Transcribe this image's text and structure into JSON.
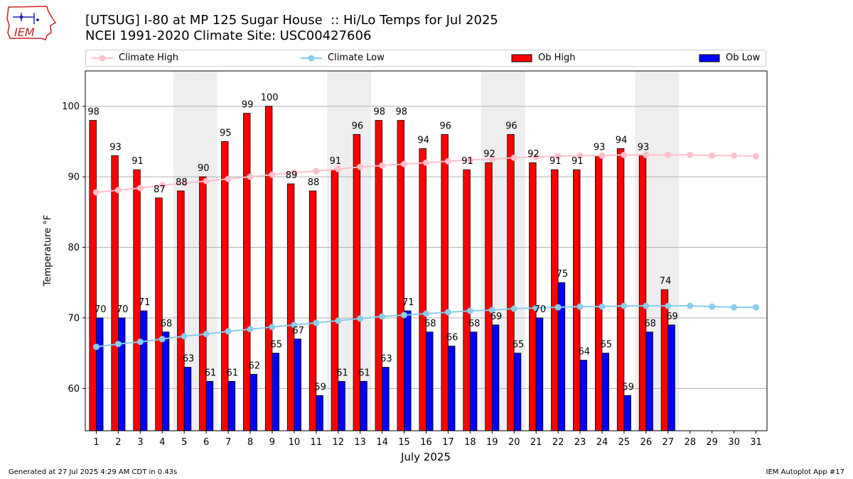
{
  "header": {
    "title_line1": "[UTSUG] I-80 at MP 125 Sugar House  :: Hi/Lo Temps for Jul 2025",
    "title_line2": "NCEI 1991-2020 Climate Site: USC00427606",
    "logo_text": "IEM"
  },
  "legend": {
    "climate_high": "Climate High",
    "climate_low": "Climate Low",
    "ob_high": "Ob High",
    "ob_low": "Ob Low"
  },
  "footer": {
    "generated": "Generated at 27 Jul 2025 4:29 AM CDT in 0.43s",
    "app": "IEM Autoplot App #17"
  },
  "colors": {
    "ob_high": "#ff0000",
    "ob_low": "#0000ff",
    "climate_high": "#ffc0cb",
    "climate_low": "#87ceeb",
    "weekend_shade": "#eeeeee",
    "grid": "#b0b0b0"
  },
  "chart_data": {
    "type": "bar",
    "xlabel": "July 2025",
    "ylabel": "Temperature °F",
    "ylim": [
      54,
      105
    ],
    "yticks": [
      60,
      70,
      80,
      90,
      100
    ],
    "grid": "horizontal",
    "legend_position": "top",
    "categories": [
      "1",
      "2",
      "3",
      "4",
      "5",
      "6",
      "7",
      "8",
      "9",
      "10",
      "11",
      "12",
      "13",
      "14",
      "15",
      "16",
      "17",
      "18",
      "19",
      "20",
      "21",
      "22",
      "23",
      "24",
      "25",
      "26",
      "27",
      "28",
      "29",
      "30",
      "31"
    ],
    "weekend_days": [
      5,
      6,
      12,
      13,
      19,
      20,
      26,
      27
    ],
    "series": [
      {
        "name": "Ob High",
        "kind": "bar",
        "values": [
          98,
          93,
          91,
          87,
          88,
          90,
          95,
          99,
          100,
          89,
          88,
          91,
          96,
          98,
          98,
          94,
          96,
          91,
          92,
          96,
          92,
          91,
          91,
          93,
          94,
          93,
          74,
          null,
          null,
          null,
          null
        ]
      },
      {
        "name": "Ob Low",
        "kind": "bar",
        "values": [
          70,
          70,
          71,
          68,
          63,
          61,
          61,
          62,
          65,
          67,
          59,
          61,
          61,
          63,
          71,
          68,
          66,
          68,
          69,
          65,
          70,
          75,
          64,
          65,
          59,
          68,
          69,
          null,
          null,
          null,
          null
        ]
      },
      {
        "name": "Climate High",
        "kind": "line",
        "values": [
          87.8,
          88.1,
          88.4,
          88.8,
          89.1,
          89.4,
          89.7,
          90.0,
          90.3,
          90.6,
          90.8,
          91.1,
          91.4,
          91.6,
          91.8,
          92.0,
          92.2,
          92.4,
          92.5,
          92.7,
          92.8,
          92.9,
          93.0,
          93.0,
          93.1,
          93.1,
          93.1,
          93.1,
          93.0,
          93.0,
          92.9
        ]
      },
      {
        "name": "Climate Low",
        "kind": "line",
        "values": [
          65.9,
          66.3,
          66.6,
          67.0,
          67.4,
          67.7,
          68.1,
          68.4,
          68.7,
          69.0,
          69.3,
          69.6,
          69.9,
          70.2,
          70.4,
          70.6,
          70.8,
          71.0,
          71.1,
          71.3,
          71.4,
          71.5,
          71.6,
          71.6,
          71.7,
          71.7,
          71.7,
          71.7,
          71.6,
          71.5,
          71.5
        ]
      }
    ]
  }
}
